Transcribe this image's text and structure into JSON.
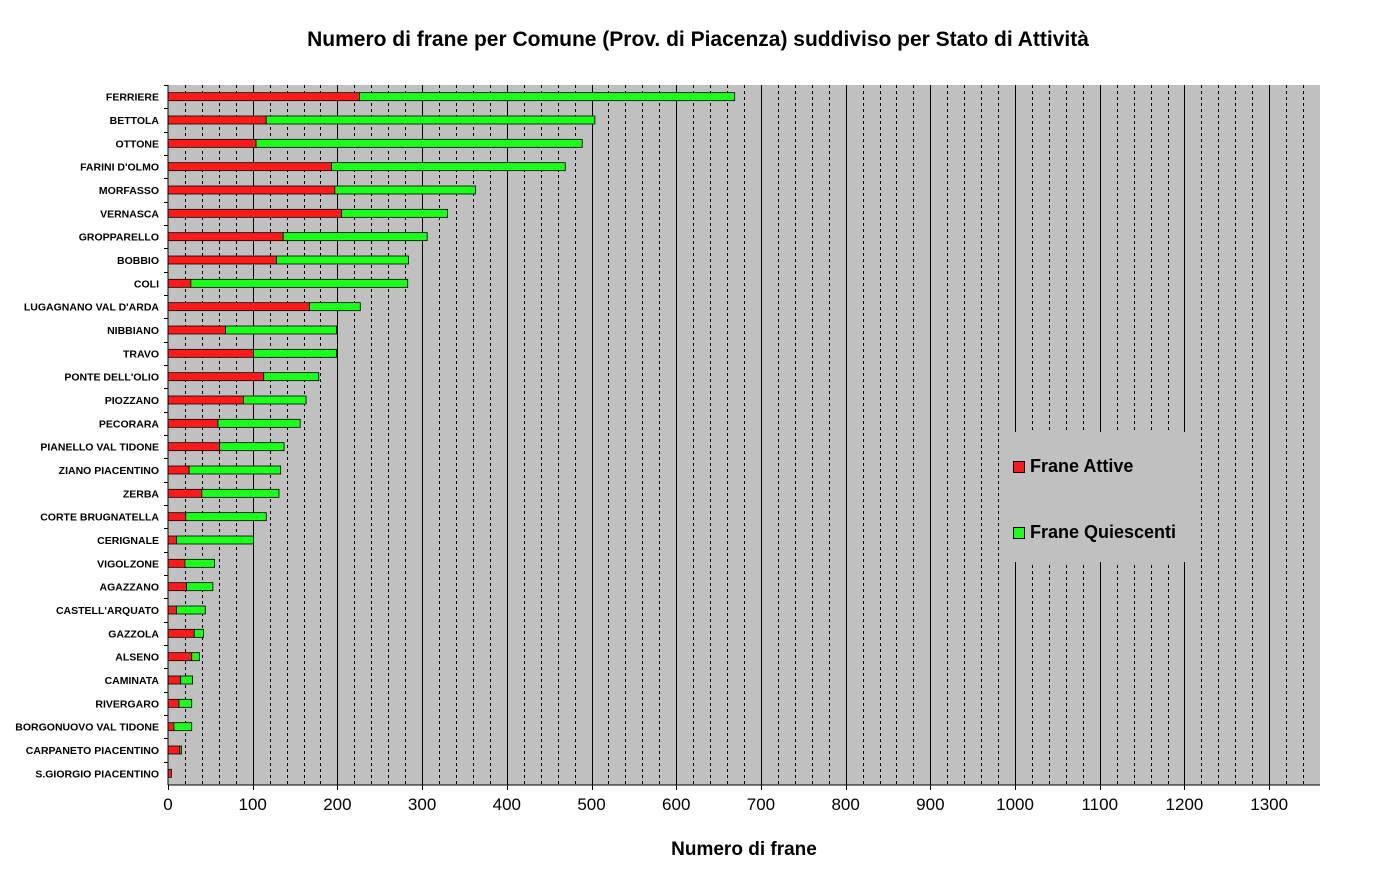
{
  "colors": {
    "active": "#ff1a1a",
    "quiescent": "#1aff1a",
    "plot_bg": "#c0c0c0"
  },
  "chart_data": {
    "type": "bar",
    "orientation": "horizontal",
    "stacked": true,
    "title": "Numero di frane per Comune (Prov. di Piacenza) suddiviso per Stato di Attività",
    "xlabel": "Numero di frane",
    "ylabel": "",
    "xlim": [
      0,
      1360
    ],
    "xticks": [
      0,
      100,
      200,
      300,
      400,
      500,
      600,
      700,
      800,
      900,
      1000,
      1100,
      1200,
      1300
    ],
    "minor_grid_step": 20,
    "grid": true,
    "legend": "right-middle",
    "categories": [
      "FERRIERE",
      "BETTOLA",
      "OTTONE",
      "FARINI D'OLMO",
      "MORFASSO",
      "VERNASCA",
      "GROPPARELLO",
      "BOBBIO",
      "COLI",
      "LUGAGNANO VAL D'ARDA",
      "NIBBIANO",
      "TRAVO",
      "PONTE DELL'OLIO",
      "PIOZZANO",
      "PECORARA",
      "PIANELLO VAL TIDONE",
      "ZIANO PIACENTINO",
      "ZERBA",
      "CORTE BRUGNATELLA",
      "CERIGNALE",
      "VIGOLZONE",
      "AGAZZANO",
      "CASTELL'ARQUATO",
      "GAZZOLA",
      "ALSENO",
      "CAMINATA",
      "RIVERGARO",
      "BORGONUOVO VAL TIDONE",
      "CARPANETO PIACENTINO",
      "S.GIORGIO PIACENTINO"
    ],
    "series": [
      {
        "name": "Frane Attive",
        "values": [
          226,
          116,
          104,
          193,
          197,
          205,
          136,
          128,
          27,
          167,
          68,
          101,
          113,
          89,
          59,
          61,
          25,
          40,
          21,
          10,
          20,
          22,
          10,
          31,
          28,
          15,
          13,
          7,
          14,
          4
        ]
      },
      {
        "name": "Frane Quiescenti",
        "values": [
          443,
          388,
          385,
          276,
          166,
          125,
          170,
          156,
          256,
          60,
          131,
          98,
          65,
          74,
          97,
          76,
          108,
          91,
          95,
          91,
          35,
          31,
          34,
          11,
          9,
          14,
          15,
          21,
          2,
          0
        ]
      }
    ]
  }
}
